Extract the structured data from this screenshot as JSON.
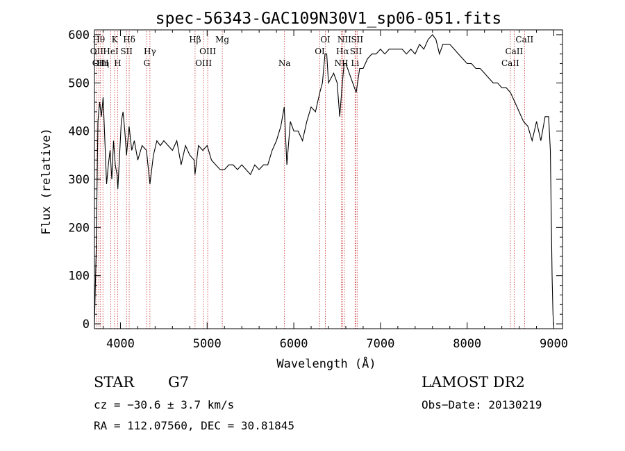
{
  "chart_data": {
    "type": "line",
    "title": "spec-56343-GAC109N30V1_sp06-051.fits",
    "xlabel": "Wavelength (Å)",
    "ylabel": "Flux (relative)",
    "xlim": [
      3700,
      9100
    ],
    "ylim": [
      -10,
      610
    ],
    "xticks": [
      4000,
      5000,
      6000,
      7000,
      8000,
      9000
    ],
    "yticks": [
      0,
      100,
      200,
      300,
      400,
      500,
      600
    ],
    "grid": false,
    "line_color": "#000000",
    "marker_color": "#cc3333",
    "series": [
      {
        "x": [
          3700,
          3720,
          3740,
          3760,
          3780,
          3800,
          3820,
          3840,
          3860,
          3880,
          3900,
          3920,
          3940,
          3960,
          3970,
          3990,
          4010,
          4030,
          4050,
          4070,
          4100,
          4130,
          4160,
          4200,
          4250,
          4300,
          4340,
          4380,
          4420,
          4460,
          4500,
          4550,
          4600,
          4650,
          4700,
          4750,
          4800,
          4850,
          4860,
          4900,
          4950,
          5000,
          5050,
          5100,
          5150,
          5200,
          5250,
          5300,
          5350,
          5400,
          5450,
          5500,
          5550,
          5600,
          5650,
          5700,
          5750,
          5800,
          5850,
          5890,
          5920,
          5960,
          6000,
          6050,
          6100,
          6150,
          6200,
          6250,
          6300,
          6330,
          6360,
          6380,
          6400,
          6430,
          6460,
          6500,
          6530,
          6560,
          6580,
          6600,
          6640,
          6680,
          6720,
          6760,
          6800,
          6850,
          6900,
          6950,
          7000,
          7050,
          7100,
          7150,
          7200,
          7250,
          7300,
          7350,
          7400,
          7450,
          7500,
          7550,
          7600,
          7640,
          7680,
          7720,
          7760,
          7800,
          7850,
          7900,
          7950,
          8000,
          8050,
          8100,
          8150,
          8200,
          8250,
          8300,
          8350,
          8400,
          8450,
          8500,
          8550,
          8600,
          8650,
          8700,
          8750,
          8800,
          8850,
          8900,
          8940,
          8960,
          8980,
          8990,
          9000
        ],
        "y": [
          0,
          150,
          420,
          460,
          430,
          470,
          380,
          290,
          330,
          360,
          300,
          380,
          330,
          310,
          280,
          350,
          420,
          440,
          400,
          350,
          410,
          360,
          380,
          340,
          370,
          360,
          290,
          350,
          380,
          370,
          380,
          370,
          360,
          380,
          330,
          370,
          350,
          340,
          310,
          370,
          360,
          370,
          340,
          330,
          320,
          320,
          330,
          330,
          320,
          330,
          320,
          310,
          330,
          320,
          330,
          330,
          360,
          380,
          410,
          450,
          330,
          420,
          400,
          400,
          380,
          420,
          450,
          440,
          480,
          500,
          560,
          560,
          500,
          510,
          520,
          500,
          430,
          500,
          540,
          540,
          520,
          500,
          480,
          530,
          530,
          550,
          560,
          560,
          570,
          560,
          570,
          570,
          570,
          570,
          560,
          570,
          560,
          580,
          570,
          590,
          600,
          590,
          560,
          580,
          580,
          580,
          570,
          560,
          550,
          540,
          540,
          530,
          530,
          520,
          510,
          500,
          500,
          490,
          490,
          480,
          460,
          440,
          420,
          410,
          380,
          420,
          380,
          430,
          430,
          360,
          100,
          20,
          -5
        ]
      }
    ],
    "line_markers": [
      {
        "x": 3727,
        "label": "OII",
        "row": 1
      },
      {
        "x": 3750,
        "label": "Hθ",
        "row": 0
      },
      {
        "x": 3770,
        "label": "OIII",
        "row": 2
      },
      {
        "x": 3798,
        "label": "Hη",
        "row": 2
      },
      {
        "x": 3889,
        "label": "HeI",
        "row": 1
      },
      {
        "x": 3933,
        "label": "K",
        "row": 0
      },
      {
        "x": 3968,
        "label": "H",
        "row": 2
      },
      {
        "x": 4070,
        "label": "SII",
        "row": 1
      },
      {
        "x": 4101,
        "label": "Hδ",
        "row": 0
      },
      {
        "x": 4304,
        "label": "G",
        "row": 2
      },
      {
        "x": 4340,
        "label": "Hγ",
        "row": 1
      },
      {
        "x": 4861,
        "label": "Hβ",
        "row": 0
      },
      {
        "x": 4959,
        "label": "OIII",
        "row": 2
      },
      {
        "x": 5007,
        "label": "OIII",
        "row": 1
      },
      {
        "x": 5175,
        "label": "Mg",
        "row": 0
      },
      {
        "x": 5893,
        "label": "Na",
        "row": 2
      },
      {
        "x": 6300,
        "label": "OI",
        "row": 1
      },
      {
        "x": 6364,
        "label": "OI",
        "row": 0
      },
      {
        "x": 6548,
        "label": "NII",
        "row": 2
      },
      {
        "x": 6563,
        "label": "Hα",
        "row": 1
      },
      {
        "x": 6583,
        "label": "NII",
        "row": 0
      },
      {
        "x": 6707,
        "label": "Li",
        "row": 2
      },
      {
        "x": 6717,
        "label": "SII",
        "row": 1
      },
      {
        "x": 6731,
        "label": "SII",
        "row": 0
      },
      {
        "x": 8498,
        "label": "CaII",
        "row": 2
      },
      {
        "x": 8542,
        "label": "CaII",
        "row": 1
      },
      {
        "x": 8662,
        "label": "CaII",
        "row": 0
      }
    ]
  },
  "info": {
    "class": "STAR",
    "subclass": "G7",
    "survey": "LAMOST DR2",
    "cz": "cz = −30.6 ± 3.7 km/s",
    "obs_date": "Obs−Date: 20130219",
    "coords": "RA = 112.07560, DEC =  30.81845"
  }
}
